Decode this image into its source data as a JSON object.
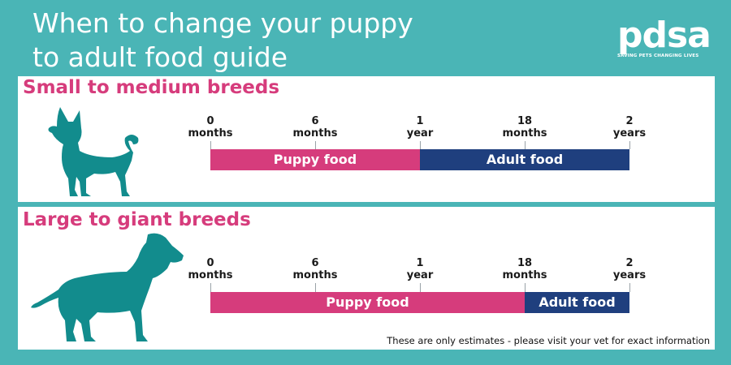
{
  "title": {
    "line1": "When to change your puppy",
    "line2": "to adult food guide"
  },
  "logo": {
    "word": "pdsa",
    "tagline": "SAVING PETS CHANGING LIVES"
  },
  "colors": {
    "background": "#4ab5b6",
    "puppy_food": "#d63c7c",
    "adult_food": "#1f3f7e",
    "dog_silhouette": "#128c8d"
  },
  "timeline_ticks": [
    {
      "number": "0",
      "unit": "months",
      "months": 0
    },
    {
      "number": "6",
      "unit": "months",
      "months": 6
    },
    {
      "number": "1",
      "unit": "year",
      "months": 12
    },
    {
      "number": "18",
      "unit": "months",
      "months": 18
    },
    {
      "number": "2",
      "unit": "years",
      "months": 24
    }
  ],
  "sections": [
    {
      "title": "Small to medium breeds",
      "icon": "small-dog-icon",
      "segments": [
        {
          "label": "Puppy food",
          "from_months": 0,
          "to_months": 12
        },
        {
          "label": "Adult food",
          "from_months": 12,
          "to_months": 24
        }
      ]
    },
    {
      "title": "Large to giant breeds",
      "icon": "large-dog-icon",
      "segments": [
        {
          "label": "Puppy food",
          "from_months": 0,
          "to_months": 18
        },
        {
          "label": "Adult food",
          "from_months": 18,
          "to_months": 24
        }
      ]
    }
  ],
  "note": "These are only estimates - please visit your vet for exact information"
}
